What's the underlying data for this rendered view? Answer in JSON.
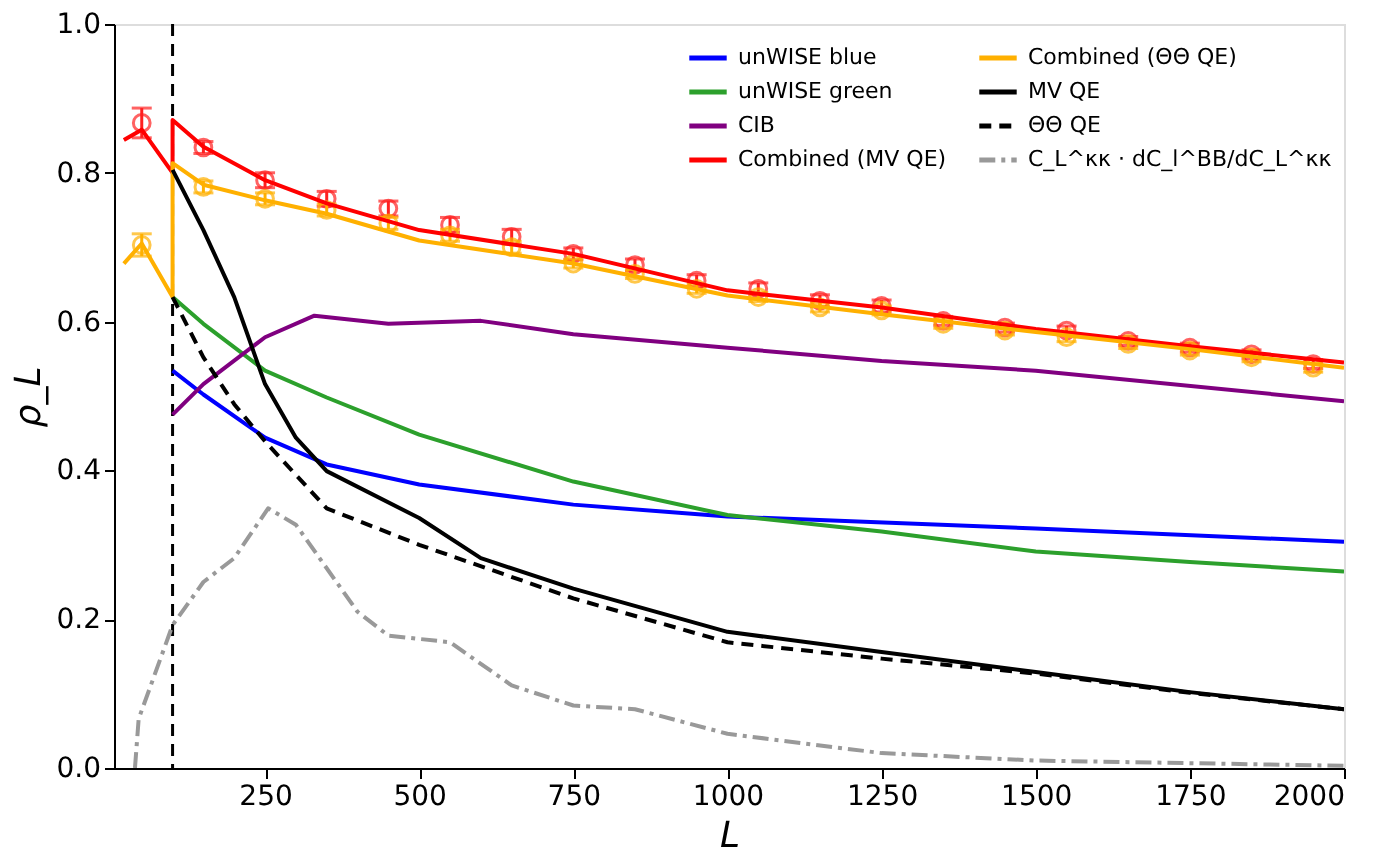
{
  "chart_data": {
    "type": "line",
    "xlabel": "L",
    "ylabel": "ρ_L",
    "xlim": [
      5,
      2000
    ],
    "xticks": [
      250,
      500,
      750,
      1000,
      1250,
      1500,
      1750,
      2000
    ],
    "ylim": [
      0,
      1.0
    ],
    "yticks": [
      {
        "value": 0,
        "label": "0.0"
      },
      {
        "value": 0.2,
        "label": "0.2"
      },
      {
        "value": 0.4,
        "label": "0.4"
      },
      {
        "value": 0.6,
        "label": "0.6"
      },
      {
        "value": 0.8,
        "label": "0.8"
      },
      {
        "value": 1.0,
        "label": "1.0"
      }
    ],
    "grid": false,
    "legend": "top right",
    "marker": "none",
    "ref_lines": [
      {
        "axis": "x",
        "value": 100,
        "color": "#000000",
        "line_style": "dashed"
      }
    ],
    "series": [
      {
        "name": "unWISE blue",
        "color": "#0000ff",
        "line_style": "solid",
        "x": [
          100,
          150,
          250,
          350,
          500,
          750,
          1000,
          1500,
          2000
        ],
        "values": [
          0.534,
          0.502,
          0.444,
          0.408,
          0.381,
          0.354,
          0.338,
          0.322,
          0.304
        ]
      },
      {
        "name": "unWISE green",
        "color": "#2ca02c",
        "line_style": "solid",
        "x": [
          100,
          150,
          250,
          350,
          500,
          750,
          1000,
          1250,
          1500,
          1750,
          2000
        ],
        "values": [
          0.633,
          0.597,
          0.534,
          0.498,
          0.448,
          0.385,
          0.34,
          0.318,
          0.291,
          0.277,
          0.264
        ]
      },
      {
        "name": "CIB",
        "color": "#800080",
        "line_style": "solid",
        "x": [
          100,
          150,
          250,
          330,
          450,
          600,
          750,
          1000,
          1250,
          1500,
          2000
        ],
        "values": [
          0.475,
          0.516,
          0.579,
          0.608,
          0.597,
          0.601,
          0.583,
          0.565,
          0.547,
          0.534,
          0.493
        ]
      },
      {
        "name": "Combined (MV QE)",
        "color": "#ff0000",
        "line_style": "solid",
        "x": [
          21,
          50,
          100,
          100,
          150,
          250,
          350,
          500,
          750,
          1000,
          1250,
          1500,
          1750,
          2000
        ],
        "values": [
          0.844,
          0.858,
          0.8,
          0.871,
          0.835,
          0.79,
          0.759,
          0.723,
          0.691,
          0.642,
          0.619,
          0.59,
          0.567,
          0.545
        ]
      },
      {
        "name": "Combined (ΘΘ QE)",
        "color": "#ffb000",
        "line_style": "solid",
        "x": [
          21,
          50,
          100,
          100,
          150,
          250,
          350,
          500,
          750,
          1000,
          1250,
          1500,
          1750,
          2000
        ],
        "values": [
          0.678,
          0.705,
          0.633,
          0.813,
          0.784,
          0.763,
          0.745,
          0.709,
          0.678,
          0.635,
          0.61,
          0.586,
          0.563,
          0.538
        ]
      },
      {
        "name": "MV QE",
        "color": "#000000",
        "line_style": "solid",
        "x": [
          100,
          150,
          200,
          250,
          300,
          350,
          500,
          600,
          750,
          1000,
          1250,
          1500,
          1750,
          2000
        ],
        "values": [
          0.804,
          0.723,
          0.633,
          0.516,
          0.444,
          0.399,
          0.336,
          0.282,
          0.241,
          0.183,
          0.156,
          0.129,
          0.102,
          0.079
        ]
      },
      {
        "name": "ΘΘ QE",
        "color": "#000000",
        "line_style": "dashed",
        "x": [
          100,
          150,
          200,
          250,
          350,
          500,
          750,
          1000,
          1250,
          1500,
          1750,
          2000
        ],
        "values": [
          0.633,
          0.552,
          0.489,
          0.439,
          0.349,
          0.3,
          0.228,
          0.169,
          0.147,
          0.127,
          0.101,
          0.079
        ]
      },
      {
        "name": "C_L^κκ · dC_l^BB/dC_L^κκ",
        "color": "#999999",
        "line_style": "dashdot",
        "x": [
          39,
          45,
          100,
          150,
          200,
          255,
          300,
          400,
          450,
          550,
          650,
          750,
          850,
          1000,
          1250,
          1500,
          2000
        ],
        "values": [
          0.0,
          0.066,
          0.192,
          0.25,
          0.282,
          0.349,
          0.327,
          0.21,
          0.178,
          0.169,
          0.111,
          0.084,
          0.079,
          0.046,
          0.02,
          0.01,
          0.003
        ]
      },
      {
        "type": "scatter",
        "color": "#ff2020",
        "marker": "circle",
        "x": [
          50,
          150,
          250,
          350,
          450,
          550,
          650,
          750,
          850,
          950,
          1050,
          1150,
          1250,
          1350,
          1450,
          1550,
          1650,
          1750,
          1850,
          1950
        ],
        "values": [
          0.867,
          0.834,
          0.79,
          0.765,
          0.752,
          0.73,
          0.714,
          0.691,
          0.676,
          0.655,
          0.644,
          0.628,
          0.621,
          0.601,
          0.592,
          0.588,
          0.574,
          0.565,
          0.556,
          0.543
        ],
        "errors": [
          0.02,
          0.008,
          0.01,
          0.01,
          0.01,
          0.01,
          0.01,
          0.008,
          0.008,
          0.008,
          0.008,
          0.008,
          0.008,
          0.006,
          0.006,
          0.006,
          0.006,
          0.006,
          0.006,
          0.006
        ]
      },
      {
        "type": "scatter",
        "color": "#ffb000",
        "marker": "circle",
        "x": [
          50,
          150,
          250,
          350,
          450,
          550,
          650,
          750,
          850,
          950,
          1050,
          1150,
          1250,
          1350,
          1450,
          1550,
          1650,
          1750,
          1850,
          1950
        ],
        "values": [
          0.703,
          0.781,
          0.765,
          0.75,
          0.732,
          0.716,
          0.7,
          0.678,
          0.664,
          0.644,
          0.633,
          0.619,
          0.615,
          0.597,
          0.588,
          0.579,
          0.57,
          0.561,
          0.552,
          0.538
        ],
        "errors": [
          0.015,
          0.008,
          0.008,
          0.008,
          0.008,
          0.008,
          0.008,
          0.006,
          0.006,
          0.006,
          0.006,
          0.006,
          0.006,
          0.006,
          0.006,
          0.006,
          0.006,
          0.006,
          0.006,
          0.006
        ]
      }
    ]
  }
}
